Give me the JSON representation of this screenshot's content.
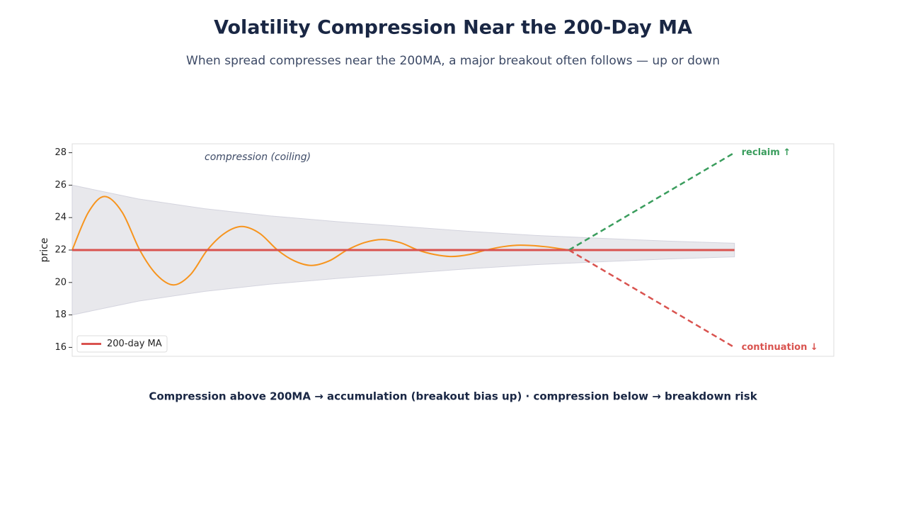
{
  "chart_data": {
    "type": "line",
    "title": "Volatility Compression Near the 200-Day MA",
    "subtitle": "When spread compresses near the 200MA, a major breakout often follows — up or down",
    "caption": "Compression above 200MA → accumulation (breakout bias up) · compression below → breakdown risk",
    "y_label": "price",
    "annotation": "compression (coiling)",
    "xlim": [
      0,
      115
    ],
    "ylim": [
      15.45,
      28.55
    ],
    "yticks": [
      16,
      18,
      20,
      22,
      24,
      26,
      28
    ],
    "legend": "lower left",
    "band": {
      "color": "#e8e8ec",
      "x": [
        0,
        10,
        20,
        30,
        40,
        50,
        60,
        70,
        80,
        90,
        100
      ],
      "upper": [
        26,
        25.15,
        24.55,
        24.1,
        23.75,
        23.45,
        23.15,
        22.9,
        22.72,
        22.55,
        22.42
      ],
      "lower": [
        18,
        18.85,
        19.45,
        19.9,
        20.25,
        20.55,
        20.85,
        21.1,
        21.28,
        21.45,
        21.58
      ]
    },
    "series": [
      {
        "color": "#f7941d",
        "smooth": true,
        "x": [
          0,
          2.45,
          4.9,
          7.55,
          10.2,
          12.75,
          15.3,
          17.85,
          20.4,
          23.0,
          25.6,
          28.3,
          31,
          33.55,
          36.1,
          38.8,
          41.5,
          44.15,
          46.8,
          49.5,
          52.2,
          54.75,
          57.3,
          59.9,
          62.5,
          65.1,
          67.7,
          71.35,
          75
        ],
        "values": [
          22,
          24.33,
          25.3,
          24.33,
          22,
          20.48,
          19.85,
          20.48,
          22,
          23.03,
          23.45,
          23.03,
          22,
          21.33,
          21.05,
          21.33,
          22,
          22.46,
          22.65,
          22.46,
          22,
          21.72,
          21.6,
          21.72,
          22,
          22.21,
          22.3,
          22.21,
          22
        ]
      },
      {
        "name": "200-day MA",
        "color": "#d9534f",
        "x": [
          0,
          100
        ],
        "values": [
          22,
          22
        ]
      },
      {
        "label": "reclaim ↑",
        "color": "#3a9d5d",
        "dashed": true,
        "x": [
          75,
          100
        ],
        "values": [
          22,
          28
        ]
      },
      {
        "label": "continuation ↓",
        "color": "#d9534f",
        "dashed": true,
        "x": [
          75,
          100
        ],
        "values": [
          22,
          16
        ]
      }
    ]
  }
}
